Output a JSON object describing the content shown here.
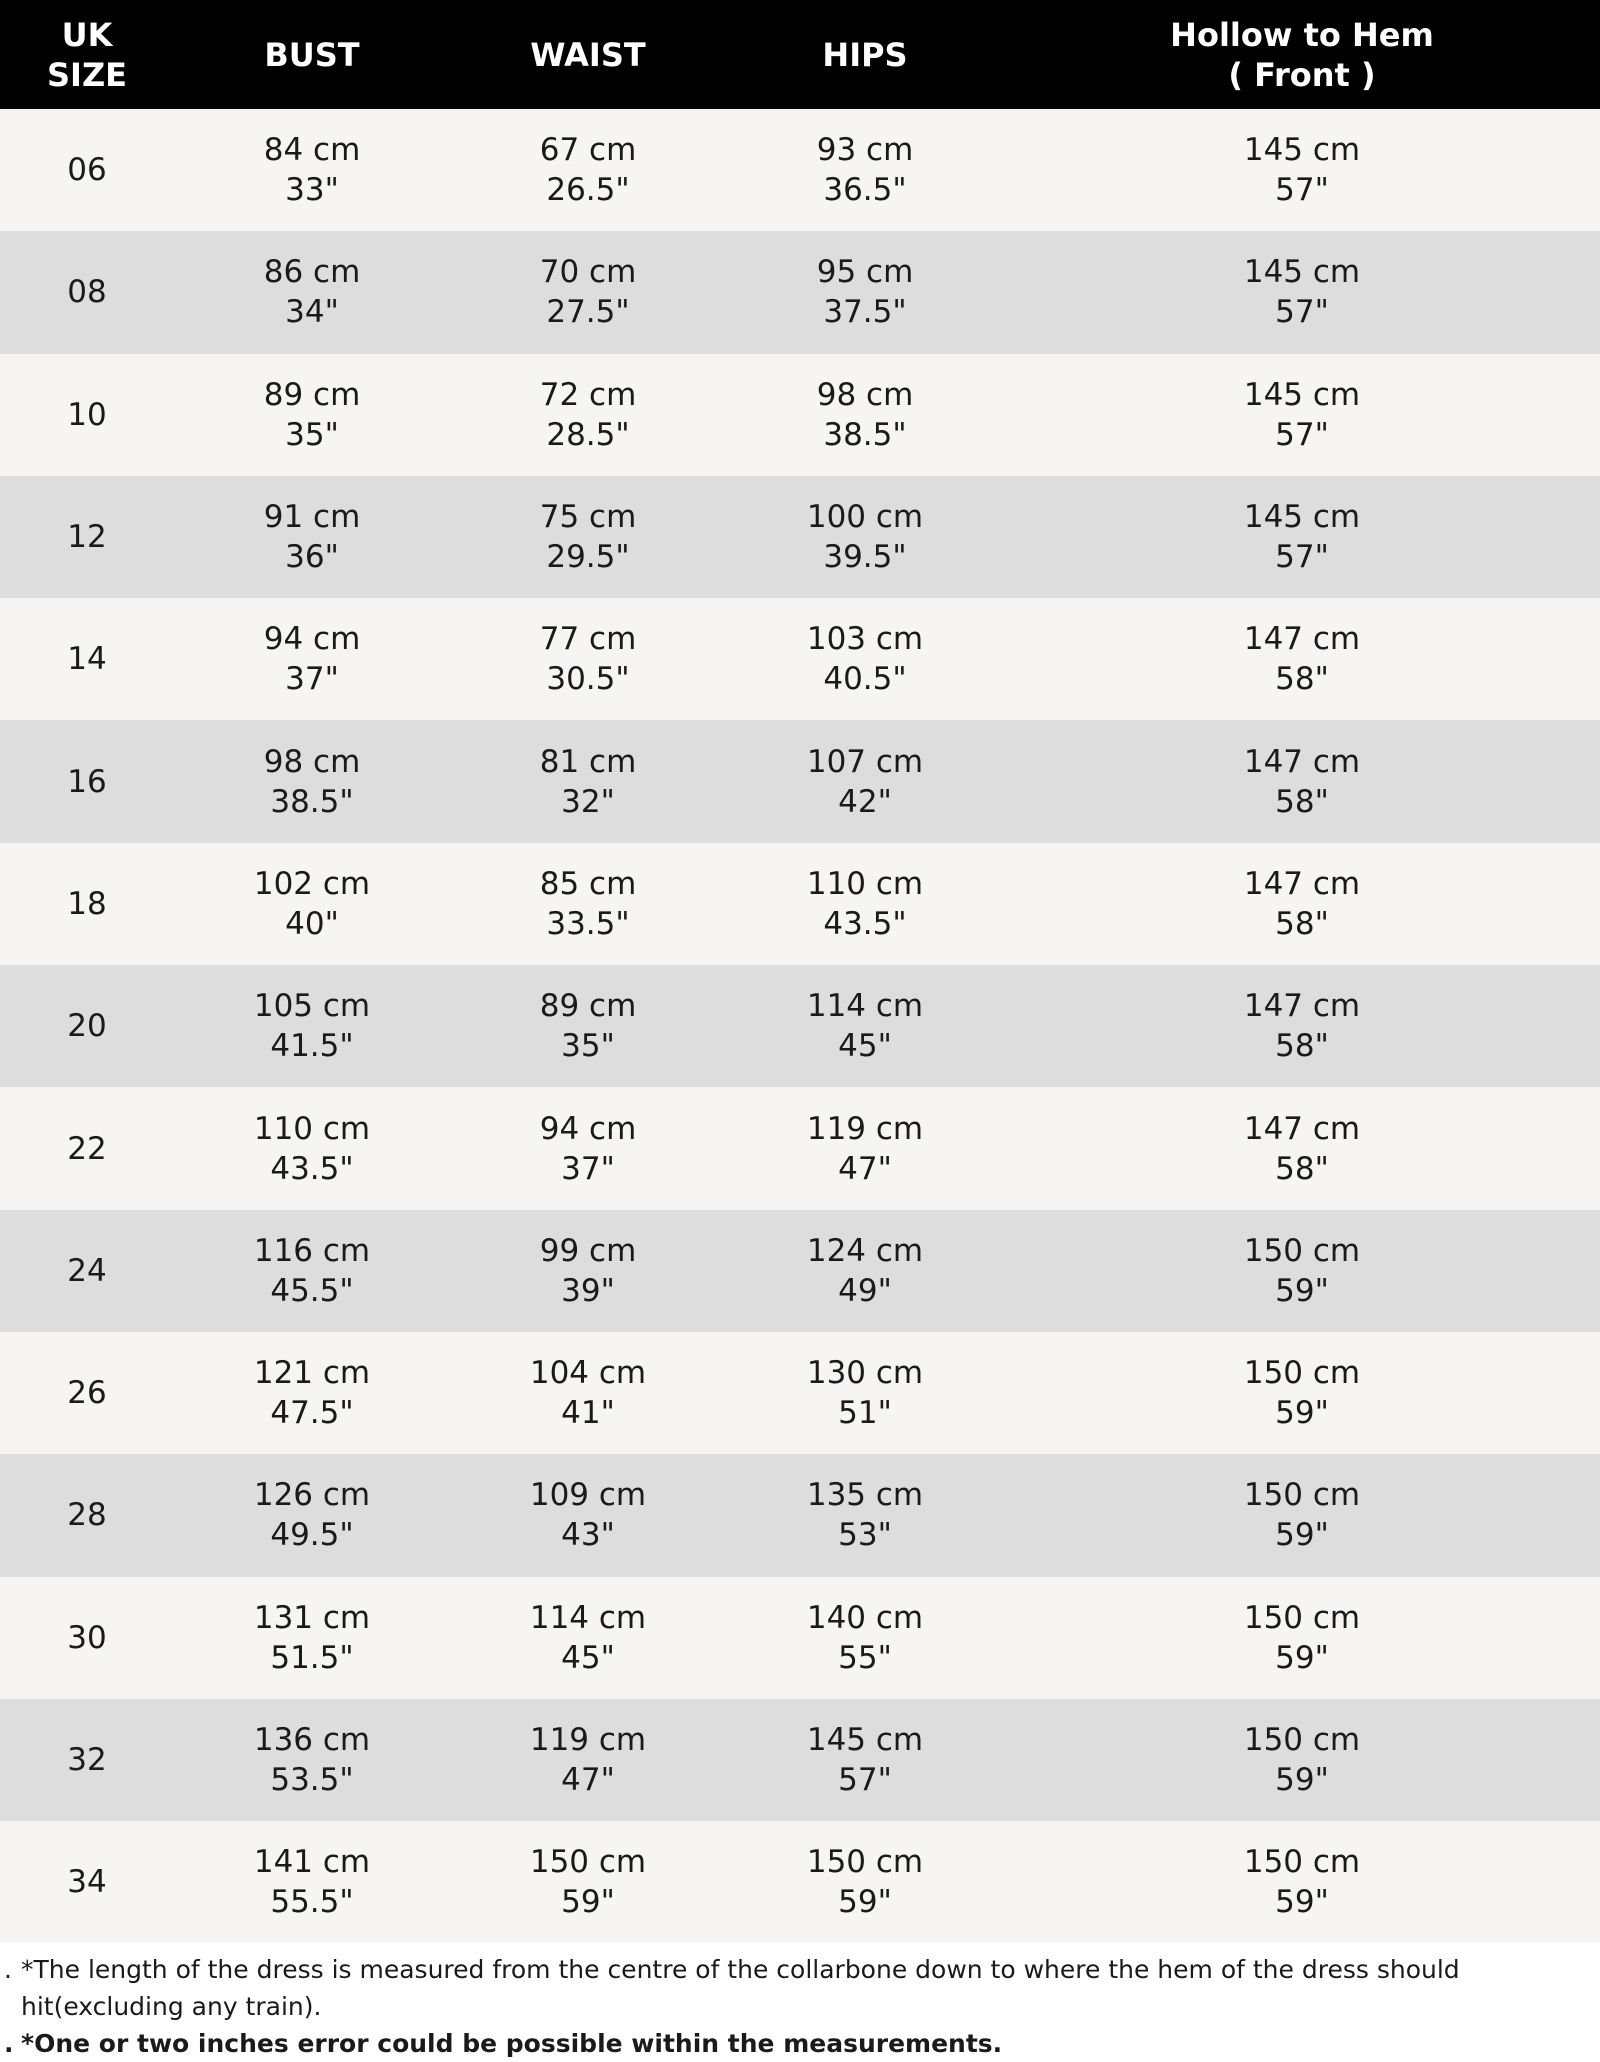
{
  "headers": [
    "UK\nSIZE",
    "BUST",
    "WAIST",
    "HIPS",
    "Hollow to Hem\n( Front )"
  ],
  "header_lines": [
    [
      "UK",
      "SIZE"
    ],
    [
      "BUST"
    ],
    [
      "WAIST"
    ],
    [
      "HIPS"
    ],
    [
      "Hollow to Hem",
      "( Front )"
    ]
  ],
  "rows": [
    {
      "size": "06",
      "bust": [
        "84 cm",
        "33\""
      ],
      "waist": [
        "67 cm",
        "26.5\""
      ],
      "hips": [
        "93 cm",
        "36.5\""
      ],
      "hem": [
        "145 cm",
        "57\""
      ]
    },
    {
      "size": "08",
      "bust": [
        "86 cm",
        "34\""
      ],
      "waist": [
        "70 cm",
        "27.5\""
      ],
      "hips": [
        "95 cm",
        "37.5\""
      ],
      "hem": [
        "145 cm",
        "57\""
      ]
    },
    {
      "size": "10",
      "bust": [
        "89 cm",
        "35\""
      ],
      "waist": [
        "72 cm",
        "28.5\""
      ],
      "hips": [
        "98 cm",
        "38.5\""
      ],
      "hem": [
        "145 cm",
        "57\""
      ]
    },
    {
      "size": "12",
      "bust": [
        "91 cm",
        "36\""
      ],
      "waist": [
        "75 cm",
        "29.5\""
      ],
      "hips": [
        "100 cm",
        "39.5\""
      ],
      "hem": [
        "145 cm",
        "57\""
      ]
    },
    {
      "size": "14",
      "bust": [
        "94 cm",
        "37\""
      ],
      "waist": [
        "77 cm",
        "30.5\""
      ],
      "hips": [
        "103 cm",
        "40.5\""
      ],
      "hem": [
        "147 cm",
        "58\""
      ]
    },
    {
      "size": "16",
      "bust": [
        "98 cm",
        "38.5\""
      ],
      "waist": [
        "81 cm",
        "32\""
      ],
      "hips": [
        "107 cm",
        "42\""
      ],
      "hem": [
        "147 cm",
        "58\""
      ]
    },
    {
      "size": "18",
      "bust": [
        "102 cm",
        "40\""
      ],
      "waist": [
        "85 cm",
        "33.5\""
      ],
      "hips": [
        "110 cm",
        "43.5\""
      ],
      "hem": [
        "147 cm",
        "58\""
      ]
    },
    {
      "size": "20",
      "bust": [
        "105 cm",
        "41.5\""
      ],
      "waist": [
        "89 cm",
        "35\""
      ],
      "hips": [
        "114 cm",
        "45\""
      ],
      "hem": [
        "147 cm",
        "58\""
      ]
    },
    {
      "size": "22",
      "bust": [
        "110 cm",
        "43.5\""
      ],
      "waist": [
        "94 cm",
        "37\""
      ],
      "hips": [
        "119 cm",
        "47\""
      ],
      "hem": [
        "147 cm",
        "58\""
      ]
    },
    {
      "size": "24",
      "bust": [
        "116 cm",
        "45.5\""
      ],
      "waist": [
        "99 cm",
        "39\""
      ],
      "hips": [
        "124 cm",
        "49\""
      ],
      "hem": [
        "150 cm",
        "59\""
      ]
    },
    {
      "size": "26",
      "bust": [
        "121 cm",
        "47.5\""
      ],
      "waist": [
        "104 cm",
        "41\""
      ],
      "hips": [
        "130 cm",
        "51\""
      ],
      "hem": [
        "150 cm",
        "59\""
      ]
    },
    {
      "size": "28",
      "bust": [
        "126 cm",
        "49.5\""
      ],
      "waist": [
        "109 cm",
        "43\""
      ],
      "hips": [
        "135 cm",
        "53\""
      ],
      "hem": [
        "150 cm",
        "59\""
      ]
    },
    {
      "size": "30",
      "bust": [
        "131 cm",
        "51.5\""
      ],
      "waist": [
        "114 cm",
        "45\""
      ],
      "hips": [
        "140 cm",
        "55\""
      ],
      "hem": [
        "150 cm",
        "59\""
      ]
    },
    {
      "size": "32",
      "bust": [
        "136 cm",
        "53.5\""
      ],
      "waist": [
        "119 cm",
        "47\""
      ],
      "hips": [
        "145 cm",
        "57\""
      ],
      "hem": [
        "150 cm",
        "59\""
      ]
    },
    {
      "size": "34",
      "bust": [
        "141 cm",
        "55.5\""
      ],
      "waist": [
        "150 cm",
        "59\""
      ],
      "hips": [
        "150 cm",
        "59\""
      ],
      "hem": [
        "150 cm",
        "59\""
      ]
    }
  ],
  "notes": [
    {
      "bullet": ".",
      "text": "*The length of the dress is measured from the centre of the collarbone down to where the hem of the dress should hit(excluding any train)."
    },
    {
      "bullet": ".",
      "text": "*One or two inches error could be possible within the measurements."
    }
  ],
  "colors": {
    "header_bg": "#000000",
    "row_light": "#f6f5f3",
    "row_dark": "#dcdddc"
  }
}
